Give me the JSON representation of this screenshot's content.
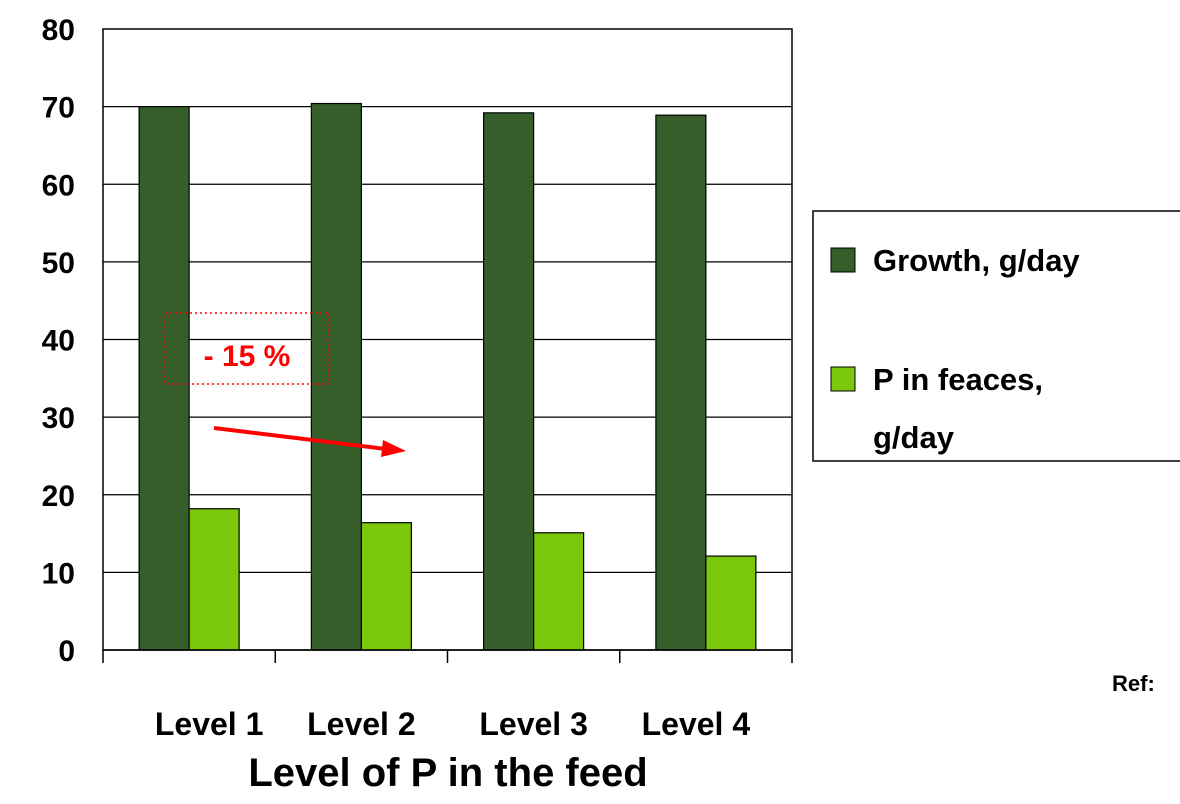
{
  "chart_data": {
    "type": "bar",
    "title": "",
    "xlabel": "Level of P in the feed",
    "ylabel": "",
    "categories": [
      "Level 1",
      "Level 2",
      "Level 3",
      "Level 4"
    ],
    "ylim": [
      0,
      80
    ],
    "yticks": [
      "0",
      "10",
      "20",
      "30",
      "40",
      "50",
      "60",
      "70",
      "80"
    ],
    "grid": true,
    "legend_position": "right",
    "series": [
      {
        "name": "Growth, g/day",
        "values": [
          70.0,
          70.4,
          69.2,
          68.9
        ],
        "color": "#355e2b"
      },
      {
        "name": "P in feaces, g/day",
        "values": [
          18.2,
          16.4,
          15.1,
          12.1
        ],
        "color": "#7ac70c"
      }
    ],
    "annotations": [
      {
        "text": "- 15 %",
        "color": "#ff0000"
      }
    ]
  },
  "reference": {
    "label": "Ref:"
  }
}
